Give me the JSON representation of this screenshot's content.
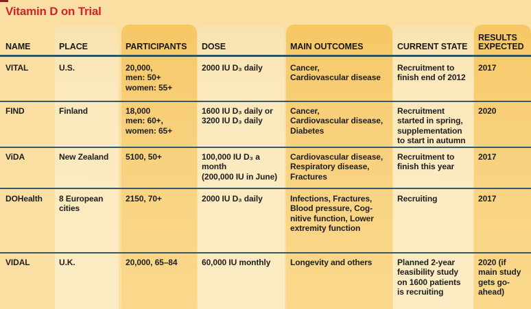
{
  "title": "Vitamin D on Trial",
  "colors": {
    "title_red": "#d2232a",
    "rule_teal": "#2e535f",
    "background": "#fbdfa2",
    "stripe_light": "#fbe9bd",
    "stripe_dark": "#f7cb6e",
    "text": "#1d1d1d"
  },
  "chart_data": {
    "type": "table",
    "title": "Vitamin D on Trial",
    "columns": [
      "NAME",
      "PLACE",
      "PARTICIPANTS",
      "DOSE",
      "MAIN OUTCOMES",
      "CURRENT STATE",
      "RESULTS EXPECTED"
    ],
    "rows": [
      {
        "name": "VITAL",
        "place": "U.S.",
        "participants": "20,000,\nmen: 50+\nwomen: 55+",
        "dose": "2000 IU D₃ daily",
        "outcomes": "Cancer,\nCardiovascular disease",
        "state": "Recruitment to\nfinish end of 2012",
        "results": "2017"
      },
      {
        "name": "FIND",
        "place": "Finland",
        "participants": "18,000\nmen: 60+,\nwomen: 65+",
        "dose": "1600 IU D₃ daily or\n3200 IU D₃ daily",
        "outcomes": "Cancer,\nCardiovascular disease,\nDiabetes",
        "state": "Recruitment\nstarted in spring,\nsupplementation\nto start in autumn",
        "results": "2020"
      },
      {
        "name": "ViDA",
        "place": "New Zealand",
        "participants": "5100, 50+",
        "dose": "100,000 IU D₃ a\nmonth\n(200,000 IU in June)",
        "outcomes": "Cardiovascular disease,\nRespiratory disease,\nFractures",
        "state": "Recruitment to\nfinish this year",
        "results": "2017"
      },
      {
        "name": "DOHealth",
        "place": "8 European\ncities",
        "participants": "2150, 70+",
        "dose": "2000 IU D₃ daily",
        "outcomes": "Infections, Fractures,\nBlood pressure, Cog-\nnitive function, Lower\nextremity function",
        "state": "Recruiting",
        "results": "2017"
      },
      {
        "name": "VIDAL",
        "place": "U.K.",
        "participants": "20,000, 65–84",
        "dose": "60,000 IU monthly",
        "outcomes": "Longevity and others",
        "state": "Planned 2-year\nfeasibility study\non 1600 patients\nis recruiting",
        "results": "2020 (if\nmain study\ngets go-\nahead)"
      }
    ]
  }
}
